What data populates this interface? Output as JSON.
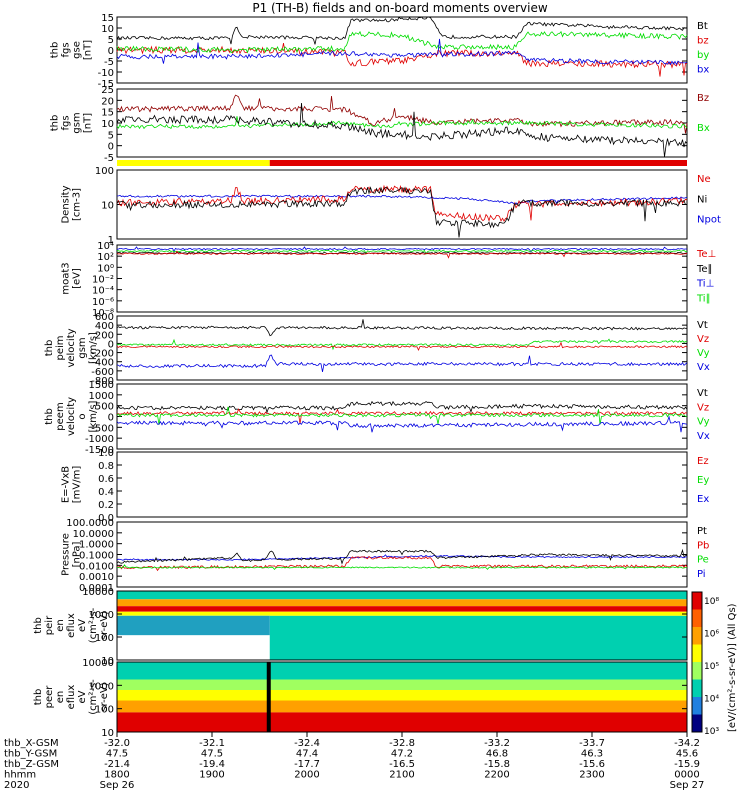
{
  "title": "P1 (TH-B) fields and on-board moments overview",
  "colors": {
    "black": "#000000",
    "red": "#e00000",
    "green": "#00dd00",
    "blue": "#0000e0",
    "darkred": "#900000",
    "yellow": "#ffff00",
    "teal": "#00d0b0"
  },
  "chart_data": [
    {
      "id": "fgs_gse",
      "type": "line",
      "ylabel_lines": [
        "thb",
        "fgs",
        "gse",
        "[nT]"
      ],
      "ylim": [
        -15,
        15
      ],
      "yticks": [
        "15",
        "10",
        "5",
        "0",
        "-5",
        "-10",
        "-15"
      ],
      "legend": [
        {
          "name": "Bt",
          "color": "#000000"
        },
        {
          "name": "bz",
          "color": "#e00000"
        },
        {
          "name": "by",
          "color": "#00dd00"
        },
        {
          "name": "bx",
          "color": "#0000e0"
        }
      ]
    },
    {
      "id": "fgs_gsm",
      "type": "line",
      "ylabel_lines": [
        "thb",
        "fgs",
        "gsm",
        "[nT]"
      ],
      "ylim": [
        -8,
        25
      ],
      "yticks": [
        "25",
        "20",
        "15",
        "10",
        "5",
        "0",
        "-5"
      ],
      "legend": [
        {
          "name": "Bz",
          "color": "#900000"
        },
        {
          "name": "Bx",
          "color": "#00dd00"
        }
      ]
    },
    {
      "id": "density",
      "type": "line",
      "ylabel_lines": [
        "Density",
        "[cm-3]"
      ],
      "ylim": [
        1,
        100
      ],
      "log": true,
      "yticks": [
        "100",
        "10",
        "1"
      ],
      "legend": [
        {
          "name": "Ne",
          "color": "#e00000"
        },
        {
          "name": "Ni",
          "color": "#000000"
        },
        {
          "name": "Npot",
          "color": "#0000e0"
        }
      ]
    },
    {
      "id": "moat",
      "type": "line",
      "ylabel_lines": [
        "moat3",
        "[eV]"
      ],
      "log": true,
      "yticks": [
        "10⁴",
        "10²",
        "10⁰",
        "10⁻²",
        "10⁻⁴",
        "10⁻⁶",
        "10⁻⁸"
      ],
      "legend": [
        {
          "name": "Te⊥",
          "color": "#e00000"
        },
        {
          "name": "Te∥",
          "color": "#000000"
        },
        {
          "name": "Ti⊥",
          "color": "#0000e0"
        },
        {
          "name": "Ti∥",
          "color": "#00dd00"
        }
      ]
    },
    {
      "id": "peim_velocity",
      "type": "line",
      "ylabel_lines": [
        "thb",
        "peim",
        "velocity",
        "gsm",
        "[km/s]"
      ],
      "ylim": [
        -800,
        600
      ],
      "yticks": [
        "600",
        "400",
        "200",
        "0",
        "-200",
        "-400",
        "-600",
        "-800"
      ],
      "legend": [
        {
          "name": "Vt",
          "color": "#000000"
        },
        {
          "name": "Vz",
          "color": "#e00000"
        },
        {
          "name": "Vy",
          "color": "#00dd00"
        },
        {
          "name": "Vx",
          "color": "#0000e0"
        }
      ]
    },
    {
      "id": "peem_velocity",
      "type": "line",
      "ylabel_lines": [
        "thb",
        "peem",
        "velocity",
        "o",
        "[km/s]"
      ],
      "ylim": [
        -1500,
        1500
      ],
      "yticks": [
        "1500",
        "1000",
        "500",
        "0",
        "-500",
        "-1000",
        "-1500"
      ],
      "legend": [
        {
          "name": "Vt",
          "color": "#000000"
        },
        {
          "name": "Vz",
          "color": "#e00000"
        },
        {
          "name": "Vy",
          "color": "#00dd00"
        },
        {
          "name": "Vx",
          "color": "#0000e0"
        }
      ]
    },
    {
      "id": "efield",
      "type": "line",
      "ylabel_lines": [
        "E=-VxB",
        "[mV/m]"
      ],
      "ylim": [
        0,
        1
      ],
      "yticks": [
        "1.0",
        "0.8",
        "0.6",
        "0.4",
        "0.2",
        "0.0"
      ],
      "legend": [
        {
          "name": "Ez",
          "color": "#e00000"
        },
        {
          "name": "Ey",
          "color": "#00dd00"
        },
        {
          "name": "Ex",
          "color": "#0000e0"
        }
      ]
    },
    {
      "id": "pressure",
      "type": "line",
      "ylabel_lines": [
        "Pressure",
        "[nPa]"
      ],
      "log": true,
      "yticks": [
        "100.0000",
        "10.0000",
        "1.0000",
        "0.1000",
        "0.0100",
        "0.0010",
        "0.0001"
      ],
      "legend": [
        {
          "name": "Pt",
          "color": "#000000"
        },
        {
          "name": "Pb",
          "color": "#e00000"
        },
        {
          "name": "Pe",
          "color": "#00dd00"
        },
        {
          "name": "Pi",
          "color": "#0000e0"
        }
      ]
    },
    {
      "id": "peir_en",
      "type": "heatmap",
      "ylabel_lines": [
        "thb",
        "peir",
        "en",
        "eflux",
        "eV",
        "(cm²-s-",
        "sr-eV)"
      ],
      "yticks": [
        "10000",
        "1000",
        "100",
        "10"
      ]
    },
    {
      "id": "peer_en",
      "type": "heatmap",
      "ylabel_lines": [
        "thb",
        "peer",
        "en",
        "eflux",
        "eV",
        "(cm²-s-",
        "sr-eV)"
      ],
      "yticks": [
        "10000",
        "1000",
        "100",
        "10"
      ]
    }
  ],
  "colorbar": {
    "label": "[eV/(cm²-s-sr-eV)] (All Qs)",
    "ticks": [
      "10⁸",
      "10⁶",
      "10⁵",
      "10⁴",
      "10³"
    ]
  },
  "xaxis": {
    "row_labels": [
      "thb_X-GSM",
      "thb_Y-GSM",
      "thb_Z-GSM",
      "hhmm",
      "2020"
    ],
    "columns": [
      {
        "vals": [
          "-32.0",
          "47.5",
          "-21.4",
          "1800",
          "Sep 26"
        ]
      },
      {
        "vals": [
          "-32.1",
          "47.5",
          "-19.4",
          "1900",
          ""
        ]
      },
      {
        "vals": [
          "-32.4",
          "47.4",
          "-17.7",
          "2000",
          ""
        ]
      },
      {
        "vals": [
          "-32.8",
          "47.2",
          "-16.5",
          "2100",
          ""
        ]
      },
      {
        "vals": [
          "-33.2",
          "46.8",
          "-15.8",
          "2200",
          ""
        ]
      },
      {
        "vals": [
          "-33.7",
          "46.3",
          "-15.6",
          "2300",
          ""
        ]
      },
      {
        "vals": [
          "-34.2",
          "45.6",
          "-15.9",
          "0000",
          "Sep 27"
        ]
      }
    ]
  }
}
